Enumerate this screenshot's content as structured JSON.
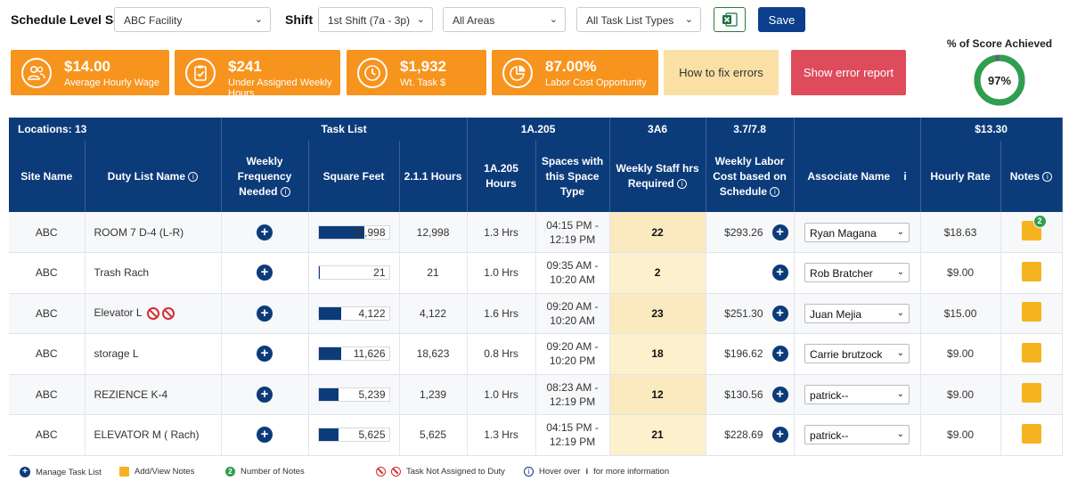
{
  "topbar": {
    "schedule_label": "Schedule Level Set",
    "facility": "ABC Facility",
    "shift_label": "Shift",
    "shift": "1st Shift (7a - 3p)",
    "areas": "All Areas",
    "task_list_types": "All Task List Types",
    "save": "Save"
  },
  "cards": [
    {
      "value": "$14.00",
      "label": "Average Hourly Wage",
      "icon": "people-icon"
    },
    {
      "value": "$241",
      "label": "Under Assigned Weekly Hours",
      "icon": "clipboard-check-icon"
    },
    {
      "value": "$1,932",
      "label": "Wt. Task $",
      "icon": "clock-icon"
    },
    {
      "value": "87.00%",
      "label": "Labor Cost Opportunity",
      "icon": "pie-chart-icon"
    }
  ],
  "how_to_fix": "How to fix errors",
  "show_error": "Show error report",
  "score": {
    "title": "% of Score Achieved",
    "value": "97%",
    "fraction": 0.97
  },
  "table": {
    "group_headers": {
      "locations": "Locations: 13",
      "task_list": "Task List",
      "g1": "1A.205",
      "g2": "3A6",
      "g3": "3.7/7.8",
      "g4": "$13.30"
    },
    "headers": {
      "site": "Site Name",
      "duty": "Duty List Name",
      "freq": "Weekly Frequency Needed",
      "sqft": "Square Feet",
      "h211": "2.1.1 Hours",
      "h1a": "1A.205 Hours",
      "spaces": "Spaces with this Space Type",
      "staff": "Weekly Staff hrs Required",
      "cost": "Weekly Labor Cost based on Schedule",
      "assoc": "Associate Name",
      "rate": "Hourly Rate",
      "notes": "Notes"
    },
    "rows": [
      {
        "site": "ABC",
        "duty": "ROOM 7 D-4 (L-R)",
        "sqft": "11,998",
        "sqft_fill": 0.65,
        "h211": "12,998",
        "h1a": "1.3 Hrs",
        "t1": "04:15 PM -",
        "t2": "12:19 PM",
        "staff": "22",
        "cost": "$293.26",
        "assoc": "Ryan Magana",
        "rate": "$18.63",
        "notes": "2",
        "err": false
      },
      {
        "site": "ABC",
        "duty": "Trash Rach",
        "sqft": "21",
        "sqft_fill": 0.01,
        "h211": "21",
        "h1a": "1.0 Hrs",
        "t1": "09:35 AM -",
        "t2": "10:20 AM",
        "staff": "2",
        "cost": "",
        "assoc": "Rob Bratcher",
        "rate": "$9.00",
        "notes": "",
        "err": false
      },
      {
        "site": "ABC",
        "duty": "Elevator L",
        "sqft": "4,122",
        "sqft_fill": 0.32,
        "h211": "4,122",
        "h1a": "1.6 Hrs",
        "t1": "09:20 AM -",
        "t2": "10:20 AM",
        "staff": "23",
        "cost": "$251.30",
        "assoc": "Juan Mejia",
        "rate": "$15.00",
        "notes": "",
        "err": true
      },
      {
        "site": "ABC",
        "duty": "storage L",
        "sqft": "11,626",
        "sqft_fill": 0.32,
        "h211": "18,623",
        "h1a": "0.8 Hrs",
        "t1": "09:20 AM -",
        "t2": "10:20 PM",
        "staff": "18",
        "cost": "$196.62",
        "assoc": "Carrie brutzock",
        "rate": "$9.00",
        "notes": "",
        "err": false
      },
      {
        "site": "ABC",
        "duty": "REZIENCE K-4",
        "sqft": "5,239",
        "sqft_fill": 0.28,
        "h211": "1,239",
        "h1a": "1.0 Hrs",
        "t1": "08:23 AM -",
        "t2": "12:19 PM",
        "staff": "12",
        "cost": "$130.56",
        "assoc": "patrick--",
        "rate": "$9.00",
        "notes": "",
        "err": false
      },
      {
        "site": "ABC",
        "duty": "ELEVATOR M ( Rach)",
        "sqft": "5,625",
        "sqft_fill": 0.28,
        "h211": "5,625",
        "h1a": "1.3 Hrs",
        "t1": "04:15 PM -",
        "t2": "12:19 PM",
        "staff": "21",
        "cost": "$228.69",
        "assoc": "patrick--",
        "rate": "$9.00",
        "notes": "",
        "err": false
      }
    ]
  },
  "legend": {
    "manage": "Manage Task List",
    "notes": "Add/View Notes",
    "count_value": "2",
    "count": "Number of Notes",
    "not_assigned": "Task Not Assigned to Duty",
    "hover": "Hover over",
    "hover_i": "i",
    "hover_tail": "for more information"
  },
  "colors": {
    "navy": "#0c3b7a",
    "orange": "#f7941d",
    "staff_bg": "#fdf0cc",
    "error_red": "#de4b5b",
    "donut_green": "#2e9e4f"
  }
}
